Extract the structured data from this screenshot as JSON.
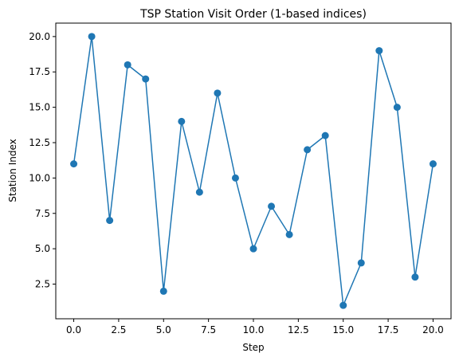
{
  "chart_data": {
    "type": "line",
    "title": "TSP Station Visit Order (1-based indices)",
    "xlabel": "Step",
    "ylabel": "Station Index",
    "xlim": [
      -1,
      21
    ],
    "ylim": [
      0.05,
      20.95
    ],
    "xticks": [
      0.0,
      2.5,
      5.0,
      7.5,
      10.0,
      12.5,
      15.0,
      17.5,
      20.0
    ],
    "xtick_labels": [
      "0.0",
      "2.5",
      "5.0",
      "7.5",
      "10.0",
      "12.5",
      "15.0",
      "17.5",
      "20.0"
    ],
    "yticks": [
      2.5,
      5.0,
      7.5,
      10.0,
      12.5,
      15.0,
      17.5,
      20.0
    ],
    "ytick_labels": [
      "2.5",
      "5.0",
      "7.5",
      "10.0",
      "12.5",
      "15.0",
      "17.5",
      "20.0"
    ],
    "grid": false,
    "series": [
      {
        "color": "#1f77b4",
        "marker": "circle",
        "x": [
          0,
          1,
          2,
          3,
          4,
          5,
          6,
          7,
          8,
          9,
          10,
          11,
          12,
          13,
          14,
          15,
          16,
          17,
          18,
          19,
          20
        ],
        "y": [
          11,
          20,
          7,
          18,
          17,
          2,
          14,
          9,
          16,
          10,
          5,
          8,
          6,
          12,
          13,
          1,
          4,
          19,
          15,
          3,
          11
        ]
      }
    ]
  }
}
